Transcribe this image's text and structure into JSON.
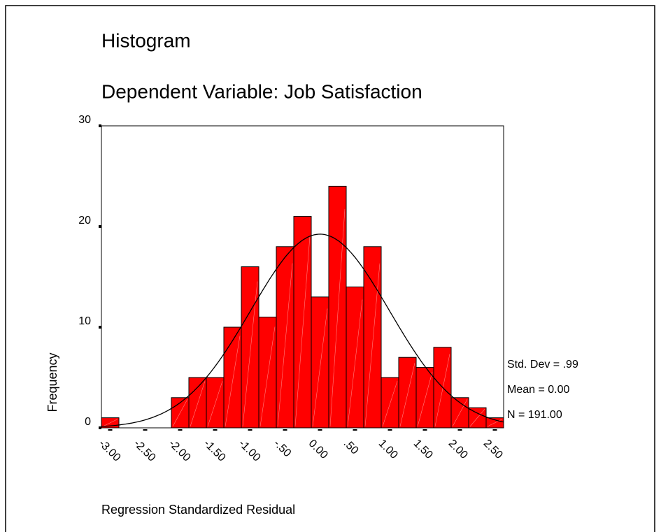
{
  "chart_data": {
    "type": "histogram",
    "title": "Histogram",
    "subtitle": "Dependent Variable: Job Satisfaction",
    "x_label": "Regression Standardized Residual",
    "y_label": "Frequency",
    "bins": [
      -3.125,
      -2.875,
      -2.625,
      -2.375,
      -2.125,
      -1.875,
      -1.625,
      -1.375,
      -1.125,
      -0.875,
      -0.625,
      -0.375,
      -0.125,
      0.125,
      0.375,
      0.625,
      0.875,
      1.125,
      1.375,
      1.625,
      1.875,
      2.125,
      2.375,
      2.625
    ],
    "values": [
      1,
      0,
      0,
      0,
      3,
      5,
      5,
      10,
      16,
      11,
      18,
      21,
      13,
      24,
      14,
      18,
      5,
      7,
      6,
      8,
      3,
      2,
      1
    ],
    "color": "#ff0000",
    "xlim": [
      -3.125,
      2.625
    ],
    "xticks": [
      {
        "value": -3,
        "label": "-3.00"
      },
      {
        "value": -2.5,
        "label": "-2.50"
      },
      {
        "value": -2,
        "label": "-2.00"
      },
      {
        "value": -1.5,
        "label": "-1.50"
      },
      {
        "value": -1,
        "label": "-1.00"
      },
      {
        "value": -0.5,
        "label": "-.50"
      },
      {
        "value": 0,
        "label": "0.00"
      },
      {
        "value": 0.5,
        "label": ".50"
      },
      {
        "value": 1,
        "label": "1.00"
      },
      {
        "value": 1.5,
        "label": "1.50"
      },
      {
        "value": 2,
        "label": "2.00"
      },
      {
        "value": 2.5,
        "label": "2.50"
      }
    ],
    "ylim": [
      0,
      30
    ],
    "yticks": [
      0,
      10,
      20,
      30
    ],
    "normal_curve": {
      "std_dev": 0.99,
      "mean": 0,
      "n": 191,
      "labels": [
        "Std. Dev = .99",
        "Mean = 0.00",
        "N = 191.00"
      ]
    }
  }
}
